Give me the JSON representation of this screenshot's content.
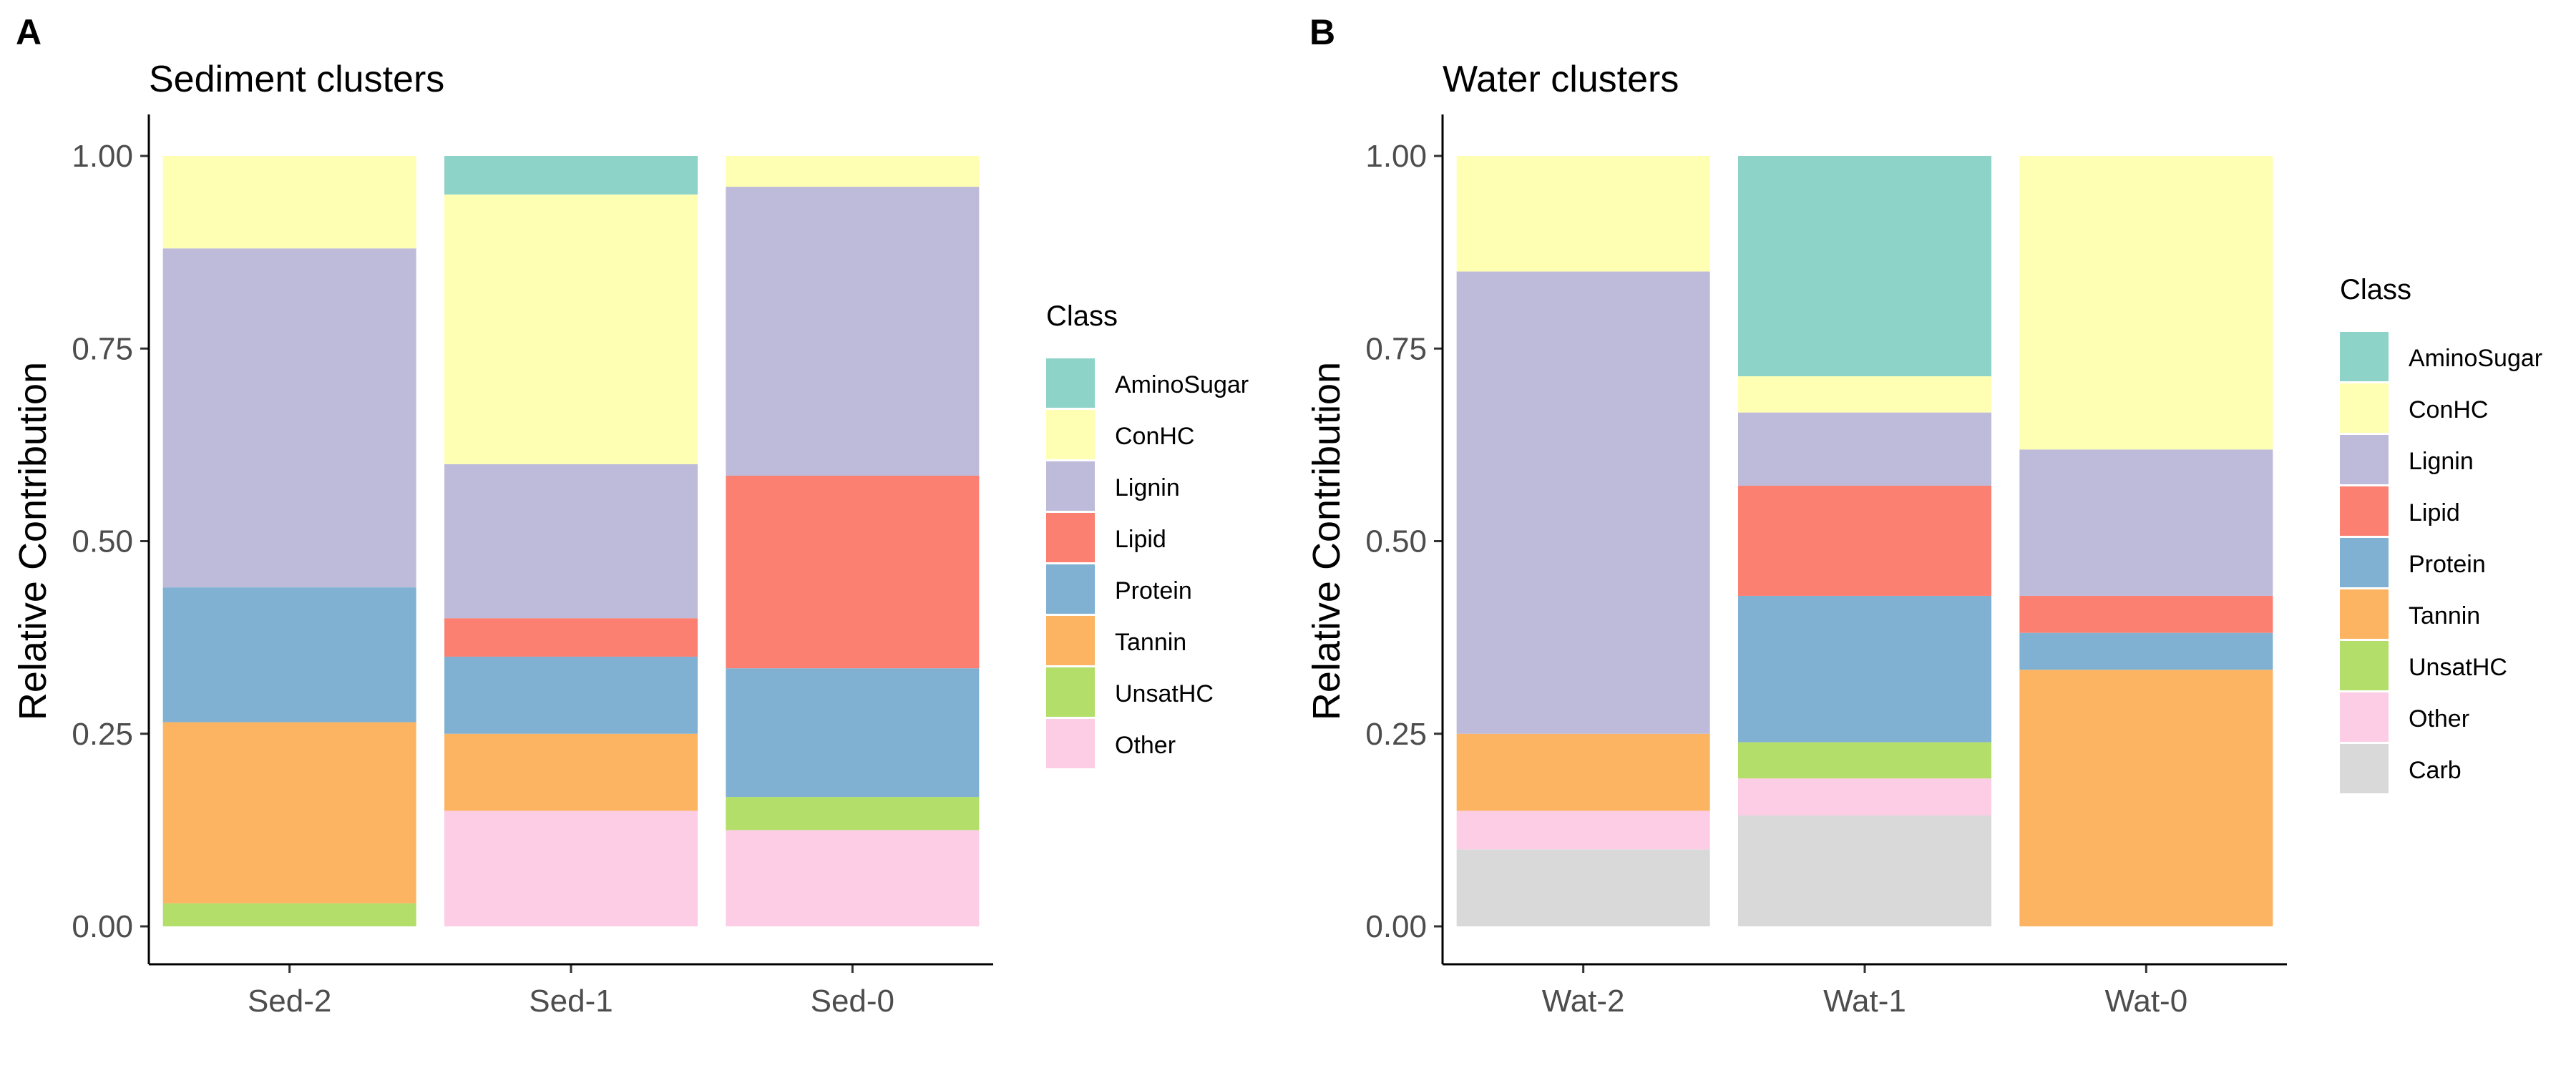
{
  "chart_data": [
    {
      "panel": "A",
      "type": "bar",
      "stacked": true,
      "title": "Sediment clusters",
      "xlabel": "",
      "ylabel": "Relative Contribution",
      "ylim": [
        0,
        1
      ],
      "yticks": [
        "0.00",
        "0.25",
        "0.50",
        "0.75",
        "1.00"
      ],
      "categories": [
        "Sed-2",
        "Sed-1",
        "Sed-0"
      ],
      "legend_title": "Class",
      "legend_position": "right",
      "grid": false,
      "series": [
        {
          "name": "AminoSugar",
          "color": "#8DD3C7",
          "values": [
            0,
            0.05,
            0
          ]
        },
        {
          "name": "ConHC",
          "color": "#FFFFB3",
          "values": [
            0.12,
            0.35,
            0.04
          ]
        },
        {
          "name": "Lignin",
          "color": "#BEBADA",
          "values": [
            0.44,
            0.2,
            0.375
          ]
        },
        {
          "name": "Lipid",
          "color": "#FB8072",
          "values": [
            0,
            0.05,
            0.25
          ]
        },
        {
          "name": "Protein",
          "color": "#80B1D3",
          "values": [
            0.175,
            0.1,
            0.167
          ]
        },
        {
          "name": "Tannin",
          "color": "#FDB462",
          "values": [
            0.235,
            0.1,
            0
          ]
        },
        {
          "name": "UnsatHC",
          "color": "#B3DE69",
          "values": [
            0.03,
            0,
            0.043
          ]
        },
        {
          "name": "Other",
          "color": "#FCCDE5",
          "values": [
            0,
            0.15,
            0.125
          ]
        }
      ]
    },
    {
      "panel": "B",
      "type": "bar",
      "stacked": true,
      "title": "Water clusters",
      "xlabel": "",
      "ylabel": "Relative Contribution",
      "ylim": [
        0,
        1
      ],
      "yticks": [
        "0.00",
        "0.25",
        "0.50",
        "0.75",
        "1.00"
      ],
      "categories": [
        "Wat-2",
        "Wat-1",
        "Wat-0"
      ],
      "legend_title": "Class",
      "legend_position": "right",
      "grid": false,
      "series": [
        {
          "name": "AminoSugar",
          "color": "#8DD3C7",
          "values": [
            0,
            0.286,
            0
          ]
        },
        {
          "name": "ConHC",
          "color": "#FFFFB3",
          "values": [
            0.15,
            0.047,
            0.381
          ]
        },
        {
          "name": "Lignin",
          "color": "#BEBADA",
          "values": [
            0.6,
            0.095,
            0.19
          ]
        },
        {
          "name": "Lipid",
          "color": "#FB8072",
          "values": [
            0,
            0.143,
            0.048
          ]
        },
        {
          "name": "Protein",
          "color": "#80B1D3",
          "values": [
            0,
            0.19,
            0.048
          ]
        },
        {
          "name": "Tannin",
          "color": "#FDB462",
          "values": [
            0.1,
            0,
            0.333
          ]
        },
        {
          "name": "UnsatHC",
          "color": "#B3DE69",
          "values": [
            0,
            0.047,
            0
          ]
        },
        {
          "name": "Other",
          "color": "#FCCDE5",
          "values": [
            0.05,
            0.048,
            0
          ]
        },
        {
          "name": "Carb",
          "color": "#D9D9D9",
          "values": [
            0.1,
            0.144,
            0
          ]
        }
      ]
    }
  ]
}
